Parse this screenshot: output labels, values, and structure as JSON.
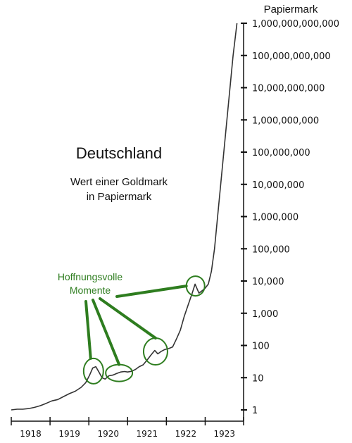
{
  "chart_data": {
    "type": "line",
    "title": "Deutschland",
    "subtitle_lines": [
      "Wert einer Goldmark",
      "in Papiermark"
    ],
    "y_axis_label": "Papiermark",
    "y_scale": "log10",
    "ylim": [
      1,
      1000000000000
    ],
    "y_ticks": [
      {
        "value": 1,
        "label": "1"
      },
      {
        "value": 10,
        "label": "10"
      },
      {
        "value": 100,
        "label": "100"
      },
      {
        "value": 1000,
        "label": "1,000"
      },
      {
        "value": 10000,
        "label": "10,000"
      },
      {
        "value": 100000,
        "label": "100,000"
      },
      {
        "value": 1000000,
        "label": "1,000,000"
      },
      {
        "value": 10000000,
        "label": "10,000,000"
      },
      {
        "value": 100000000,
        "label": "100,000,000"
      },
      {
        "value": 1000000000,
        "label": "1,000,000,000"
      },
      {
        "value": 10000000000,
        "label": "10,000,000,000"
      },
      {
        "value": 100000000000,
        "label": "100,000,000,000"
      },
      {
        "value": 1000000000000,
        "label": "1,000,000,000,000"
      }
    ],
    "x_ticks": [
      "1918",
      "1919",
      "1920",
      "1921",
      "1922",
      "1923"
    ],
    "xlim": [
      1918.0,
      1923.99
    ],
    "series": [
      {
        "points": [
          [
            1918.0,
            1.0
          ],
          [
            1918.15,
            1.05
          ],
          [
            1918.3,
            1.05
          ],
          [
            1918.45,
            1.1
          ],
          [
            1918.6,
            1.2
          ],
          [
            1918.75,
            1.35
          ],
          [
            1918.9,
            1.6
          ],
          [
            1919.05,
            1.9
          ],
          [
            1919.2,
            2.1
          ],
          [
            1919.35,
            2.6
          ],
          [
            1919.5,
            3.2
          ],
          [
            1919.65,
            3.8
          ],
          [
            1919.8,
            5.0
          ],
          [
            1919.92,
            7.0
          ],
          [
            1920.02,
            12.0
          ],
          [
            1920.1,
            20.0
          ],
          [
            1920.18,
            22.0
          ],
          [
            1920.26,
            15.0
          ],
          [
            1920.34,
            10.0
          ],
          [
            1920.42,
            9.0
          ],
          [
            1920.52,
            11.5
          ],
          [
            1920.62,
            12.0
          ],
          [
            1920.72,
            13.5
          ],
          [
            1920.82,
            15.0
          ],
          [
            1920.92,
            15.5
          ],
          [
            1921.0,
            15.0
          ],
          [
            1921.1,
            15.8
          ],
          [
            1921.2,
            18.0
          ],
          [
            1921.3,
            22.0
          ],
          [
            1921.4,
            25.0
          ],
          [
            1921.5,
            35.0
          ],
          [
            1921.6,
            50.0
          ],
          [
            1921.7,
            70.0
          ],
          [
            1921.78,
            55.0
          ],
          [
            1921.86,
            65.0
          ],
          [
            1921.96,
            75.0
          ],
          [
            1922.06,
            80.0
          ],
          [
            1922.16,
            90.0
          ],
          [
            1922.26,
            160.0
          ],
          [
            1922.36,
            300.0
          ],
          [
            1922.46,
            800.0
          ],
          [
            1922.56,
            1800.0
          ],
          [
            1922.66,
            4000.0
          ],
          [
            1922.74,
            8000.0
          ],
          [
            1922.84,
            4200.0
          ],
          [
            1922.92,
            5000.0
          ],
          [
            1923.0,
            6000.0
          ],
          [
            1923.08,
            8000.0
          ],
          [
            1923.16,
            20000.0
          ],
          [
            1923.24,
            100000.0
          ],
          [
            1923.32,
            1000000.0
          ],
          [
            1923.4,
            10000000.0
          ],
          [
            1923.48,
            100000000.0
          ],
          [
            1923.56,
            1000000000.0
          ],
          [
            1923.64,
            10000000000.0
          ],
          [
            1923.72,
            100000000000.0
          ],
          [
            1923.82,
            1000000000000.0
          ]
        ]
      }
    ],
    "annotation": {
      "text_lines": [
        "Hoffnungsvolle",
        "Momente"
      ],
      "color": "#2e7d1f",
      "highlighted_points": [
        [
          1920.12,
          16.0
        ],
        [
          1920.78,
          14.0
        ],
        [
          1921.72,
          65.0
        ],
        [
          1922.75,
          7000.0
        ]
      ]
    },
    "line_color": "#333333",
    "axis_color": "#111111",
    "grid": false
  }
}
